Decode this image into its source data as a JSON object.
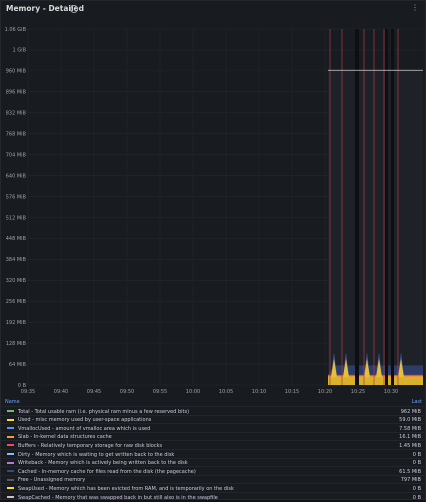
{
  "panel": {
    "title": "Memory - Detailed",
    "info_icon": "info-circle-icon",
    "menu_icon": "ellipsis-vertical-icon"
  },
  "chart_data": {
    "type": "area",
    "y_ticks": [
      "0 B",
      "64 MiB",
      "128 MiB",
      "192 MiB",
      "256 MiB",
      "320 MiB",
      "384 MiB",
      "448 MiB",
      "512 MiB",
      "576 MiB",
      "640 MiB",
      "704 MiB",
      "768 MiB",
      "832 MiB",
      "896 MiB",
      "960 MiB",
      "1 GiB",
      "1.06 GiB"
    ],
    "x_ticks": [
      "09:35",
      "09:40",
      "09:45",
      "09:50",
      "09:55",
      "10:00",
      "10:05",
      "10:10",
      "10:15",
      "10:20",
      "10:25",
      "10:30"
    ],
    "ylim_mib": [
      0,
      1088
    ],
    "total_line_mib": 962,
    "data_start": "10:20",
    "legend_headers": {
      "name": "Name",
      "last": "Last"
    }
  },
  "legend": [
    {
      "name": "Total - Total usable ram (i.e. physical ram minus a few reserved bits)",
      "last": "962 MiB",
      "color": "#73bf69"
    },
    {
      "name": "Used - misc memory used by user-space applications",
      "last": "59.0 MiB",
      "color": "#fade2a"
    },
    {
      "name": "VmallocUsed - amount of vmalloc area which is used",
      "last": "7.58 MiB",
      "color": "#5794f2"
    },
    {
      "name": "Slab - In-kernel data structures cache",
      "last": "16.1 MiB",
      "color": "#ff9830"
    },
    {
      "name": "Buffers - Relatively temporary storage for raw disk blocks",
      "last": "1.45 MiB",
      "color": "#f2495c"
    },
    {
      "name": "Dirty - Memory which is waiting to get written back to the disk",
      "last": "0 B",
      "color": "#8ab8ff"
    },
    {
      "name": "Writeback - Memory which is actively being written back to the disk",
      "last": "0 B",
      "color": "#b877d9"
    },
    {
      "name": "Cached - In-memory cache for files read from the disk (the pagecache)",
      "last": "61.5 MiB",
      "color": "#37497d"
    },
    {
      "name": "Free - Unassigned memory",
      "last": "797 MiB",
      "color": "#585a60"
    },
    {
      "name": "SwapUsed - Memory which has been evicted from RAM, and is temporarily on the disk",
      "last": "0 B",
      "color": "#fade2a"
    },
    {
      "name": "SwapCached - Memory that was swapped back in but still also is in the swapfile",
      "last": "0 B",
      "color": "#c4c4c4"
    }
  ]
}
